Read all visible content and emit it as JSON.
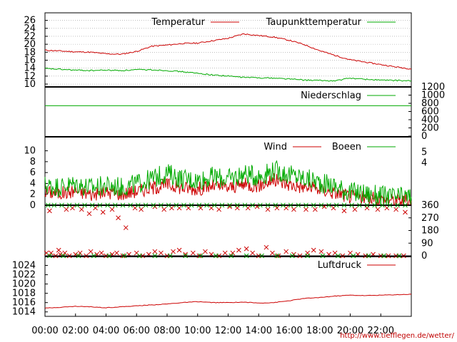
{
  "credit": "http://www.tiefflegen.de/wetter/",
  "x_ticks": [
    "00:00",
    "02:00",
    "04:00",
    "06:00",
    "08:00",
    "10:00",
    "12:00",
    "14:00",
    "16:00",
    "18:00",
    "20:00",
    "22:00"
  ],
  "chart_data": [
    {
      "type": "line",
      "panel": "temperature",
      "ylim": [
        10,
        27
      ],
      "yticks": [
        10,
        12,
        14,
        16,
        18,
        20,
        22,
        24,
        26
      ],
      "legend_position": "top",
      "series": [
        {
          "name": "Temperatur",
          "color": "#cc0000",
          "x": [
            0,
            1,
            2,
            3,
            4,
            5,
            6,
            7,
            8,
            9,
            10,
            11,
            12,
            13,
            14,
            15,
            16,
            17,
            18,
            19,
            20,
            21,
            22,
            23,
            24
          ],
          "values": [
            18.5,
            18.3,
            18.1,
            18.0,
            17.6,
            17.5,
            18.2,
            19.5,
            19.8,
            20.2,
            20.3,
            20.9,
            21.5,
            22.6,
            22.2,
            21.8,
            21.0,
            19.9,
            18.4,
            17.2,
            16.1,
            15.5,
            14.9,
            14.3,
            13.8
          ]
        },
        {
          "name": "Taupunkttemperatur",
          "color": "#00aa00",
          "x": [
            0,
            1,
            2,
            3,
            4,
            5,
            6,
            7,
            8,
            9,
            10,
            11,
            12,
            13,
            14,
            15,
            16,
            17,
            18,
            19,
            20,
            21,
            22,
            23,
            24
          ],
          "values": [
            13.9,
            13.7,
            13.5,
            13.4,
            13.5,
            13.4,
            13.6,
            13.6,
            13.4,
            13.1,
            12.7,
            12.3,
            12.0,
            11.7,
            11.6,
            11.5,
            11.3,
            11.0,
            10.9,
            10.8,
            11.5,
            11.2,
            11.0,
            10.9,
            10.8
          ]
        }
      ]
    },
    {
      "type": "line",
      "panel": "precipitation",
      "ylim": [
        0,
        1200
      ],
      "yticks": [
        0,
        200,
        400,
        600,
        800,
        1000,
        1200
      ],
      "legend_position": "top-right",
      "series": [
        {
          "name": "Niederschlag",
          "color": "#00aa00",
          "x": [
            0,
            24
          ],
          "values": [
            740,
            740
          ]
        }
      ]
    },
    {
      "type": "line",
      "panel": "wind",
      "ylim": [
        0,
        11
      ],
      "yticks": [
        0,
        2,
        4,
        6,
        8,
        10
      ],
      "right_ticks": [
        {
          "label": "5",
          "v": 9.75
        },
        {
          "label": "4",
          "v": 7.8
        }
      ],
      "legend_position": "top-right",
      "series": [
        {
          "name": "Wind",
          "color": "#cc0000",
          "x": [
            0,
            1,
            2,
            3,
            4,
            5,
            6,
            7,
            8,
            9,
            10,
            11,
            12,
            13,
            14,
            15,
            16,
            17,
            18,
            19,
            20,
            21,
            22,
            23,
            24
          ],
          "values": [
            2.5,
            2.2,
            2.6,
            2.0,
            2.4,
            2.1,
            2.6,
            3.2,
            3.8,
            3.2,
            3.0,
            3.5,
            3.2,
            3.8,
            3.6,
            4.6,
            3.8,
            3.3,
            2.9,
            2.3,
            1.6,
            1.3,
            1.1,
            0.9,
            0.8
          ]
        },
        {
          "name": "Boeen",
          "color": "#00aa00",
          "x": [
            0,
            1,
            2,
            3,
            4,
            5,
            6,
            7,
            8,
            9,
            10,
            11,
            12,
            13,
            14,
            15,
            16,
            17,
            18,
            19,
            20,
            21,
            22,
            23,
            24
          ],
          "values": [
            3.6,
            3.4,
            3.9,
            3.2,
            3.6,
            3.3,
            3.9,
            4.8,
            5.9,
            4.8,
            4.6,
            5.2,
            4.8,
            5.7,
            5.3,
            6.4,
            5.6,
            4.9,
            4.2,
            3.5,
            2.4,
            2.1,
            1.7,
            1.4,
            1.5
          ]
        }
      ]
    },
    {
      "type": "scatter",
      "panel": "wind_direction",
      "ylim": [
        0,
        360
      ],
      "yticks": [
        0,
        90,
        180,
        270,
        360
      ],
      "marker": "x",
      "series": [
        {
          "name": "",
          "color": "#cc0000",
          "x": [
            0.3,
            0.9,
            1.4,
            1.8,
            2.4,
            2.9,
            3.3,
            3.8,
            4.4,
            4.8,
            5.3,
            5.9,
            6.3,
            7.2,
            7.8,
            8.3,
            8.8,
            9.4,
            10.2,
            10.9,
            11.4,
            12.1,
            12.6,
            13.3,
            13.9,
            14.6,
            15.2,
            15.8,
            16.3,
            17.1,
            17.7,
            18.3,
            18.9,
            19.6,
            20.3,
            21.1,
            21.8,
            22.4,
            23.0,
            23.6
          ],
          "values": [
            320,
            40,
            330,
            340,
            330,
            300,
            340,
            310,
            330,
            270,
            200,
            340,
            330,
            350,
            330,
            340,
            340,
            340,
            340,
            340,
            330,
            350,
            340,
            340,
            350,
            330,
            340,
            340,
            330,
            330,
            330,
            350,
            340,
            320,
            330,
            340,
            330,
            340,
            330,
            310
          ]
        },
        {
          "name": "",
          "color": "#00aa00",
          "x": [
            0.2,
            0.6,
            1.1,
            1.6,
            2.1,
            2.6,
            3.1,
            3.6,
            4.1,
            4.6,
            5.1,
            5.6,
            6.1,
            6.6,
            7.1,
            7.6,
            8.1,
            8.6,
            9.1,
            9.6,
            10.1,
            10.6,
            11.1,
            11.6,
            12.1,
            12.6,
            13.1,
            13.6,
            14.1,
            14.6,
            15.1,
            15.6,
            16.1,
            16.6,
            17.1,
            17.6,
            18.1,
            18.6,
            19.1,
            19.6,
            20.1,
            20.6,
            21.1,
            21.6,
            22.1,
            22.6,
            23.1,
            23.6
          ],
          "values": [
            360,
            360,
            360,
            360,
            360,
            360,
            360,
            360,
            360,
            360,
            360,
            360,
            360,
            360,
            360,
            360,
            360,
            360,
            360,
            360,
            360,
            360,
            360,
            360,
            360,
            360,
            360,
            360,
            360,
            360,
            360,
            360,
            360,
            360,
            360,
            360,
            360,
            360,
            360,
            360,
            360,
            360,
            360,
            360,
            360,
            360,
            360,
            360
          ]
        },
        {
          "name": "",
          "color": "#cc0000",
          "x": [
            0.1,
            0.4,
            0.7,
            1.0,
            1.3,
            1.6,
            2.0,
            2.3,
            2.7,
            3.0,
            3.4,
            3.7,
            4.0,
            4.4,
            4.7,
            5.1,
            5.5,
            6.0,
            6.4,
            6.8,
            7.2,
            7.6,
            8.0,
            8.4,
            8.8,
            9.2,
            9.7,
            10.1,
            10.5,
            10.9,
            11.4,
            11.8,
            12.3,
            12.7,
            13.2,
            13.6,
            14.0,
            14.5,
            14.9,
            15.3,
            15.8,
            16.3,
            16.7,
            17.2,
            17.6,
            18.1,
            18.6,
            19.0,
            19.5,
            20.0,
            20.5,
            21.0,
            21.5,
            22.0,
            22.5,
            23.0,
            23.5
          ],
          "values": [
            20,
            20,
            0,
            10,
            20,
            0,
            10,
            20,
            0,
            30,
            10,
            20,
            0,
            10,
            20,
            0,
            10,
            20,
            0,
            10,
            30,
            20,
            0,
            30,
            40,
            10,
            20,
            0,
            30,
            10,
            0,
            20,
            20,
            40,
            50,
            20,
            0,
            60,
            20,
            0,
            30,
            10,
            0,
            20,
            40,
            30,
            10,
            20,
            0,
            20,
            10,
            0,
            10,
            0,
            0,
            0,
            0
          ]
        },
        {
          "name": "",
          "color": "#00aa00",
          "x": [
            0.3,
            1.2,
            2.2,
            3.2,
            4.2,
            5.2,
            6.2,
            7.2,
            8.2,
            9.2,
            10.2,
            11.2,
            12.2,
            13.2,
            14.2,
            15.2,
            16.2,
            17.2,
            18.2,
            19.2,
            20.2,
            21.2,
            22.2,
            23.2
          ],
          "values": [
            0,
            0,
            0,
            0,
            0,
            0,
            0,
            0,
            0,
            0,
            0,
            0,
            0,
            0,
            0,
            0,
            0,
            0,
            0,
            0,
            0,
            0,
            0,
            0
          ]
        }
      ]
    },
    {
      "type": "line",
      "panel": "pressure",
      "ylim": [
        1013.5,
        1025
      ],
      "yticks": [
        1014,
        1016,
        1018,
        1020,
        1022,
        1024
      ],
      "legend_position": "top-right",
      "series": [
        {
          "name": "Luftdruck",
          "color": "#cc0000",
          "x": [
            0,
            1,
            2,
            3,
            4,
            5,
            6,
            7,
            8,
            9,
            10,
            11,
            12,
            13,
            14,
            15,
            16,
            17,
            18,
            19,
            20,
            21,
            22,
            23,
            24
          ],
          "values": [
            1014.8,
            1015.0,
            1015.2,
            1015.1,
            1014.9,
            1015.1,
            1015.3,
            1015.5,
            1015.7,
            1016.0,
            1016.2,
            1016.0,
            1016.0,
            1016.1,
            1015.9,
            1016.0,
            1016.4,
            1016.9,
            1017.1,
            1017.4,
            1017.6,
            1017.5,
            1017.6,
            1017.7,
            1017.8
          ]
        }
      ]
    }
  ]
}
